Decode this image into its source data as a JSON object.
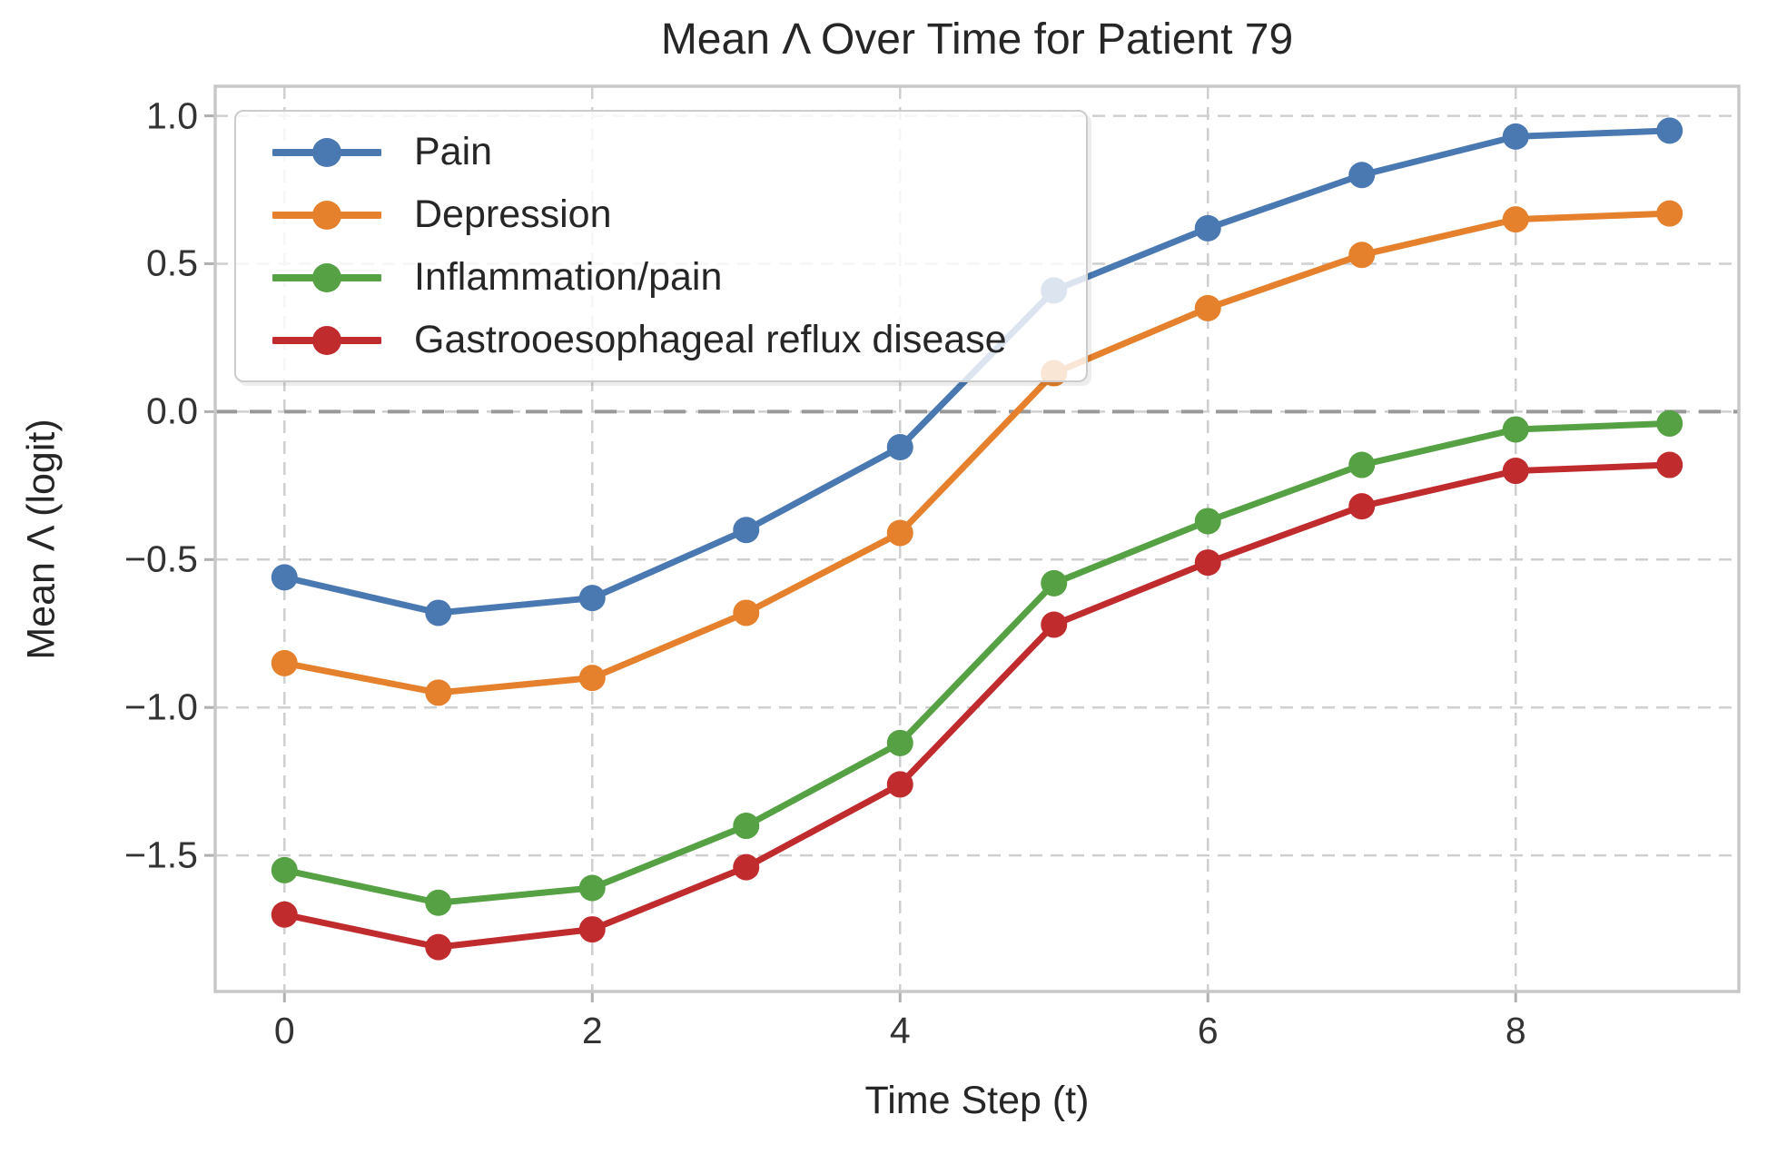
{
  "chart_data": {
    "type": "line",
    "title": "Mean Λ Over Time for Patient 79",
    "xlabel": "Time Step (t)",
    "ylabel": "Mean Λ (logit)",
    "x": [
      0,
      1,
      2,
      3,
      4,
      5,
      6,
      7,
      8,
      9
    ],
    "series": [
      {
        "name": "Pain",
        "color": "#4A79B1",
        "values": [
          -0.56,
          -0.68,
          -0.63,
          -0.4,
          -0.12,
          0.41,
          0.62,
          0.8,
          0.93,
          0.95
        ]
      },
      {
        "name": "Depression",
        "color": "#E5812C",
        "values": [
          -0.85,
          -0.95,
          -0.9,
          -0.68,
          -0.41,
          0.13,
          0.35,
          0.53,
          0.65,
          0.67
        ]
      },
      {
        "name": "Inflammation/pain",
        "color": "#55A143",
        "values": [
          -1.55,
          -1.66,
          -1.61,
          -1.4,
          -1.12,
          -0.58,
          -0.37,
          -0.18,
          -0.06,
          -0.04
        ]
      },
      {
        "name": "Gastrooesophageal reflux disease",
        "color": "#C02B2E",
        "values": [
          -1.7,
          -1.81,
          -1.75,
          -1.54,
          -1.26,
          -0.72,
          -0.51,
          -0.32,
          -0.2,
          -0.18
        ]
      }
    ],
    "x_ticks": [
      {
        "v": 0,
        "label": "0"
      },
      {
        "v": 2,
        "label": "2"
      },
      {
        "v": 4,
        "label": "4"
      },
      {
        "v": 6,
        "label": "6"
      },
      {
        "v": 8,
        "label": "8"
      }
    ],
    "y_ticks": [
      {
        "v": 1.0,
        "label": "1.0"
      },
      {
        "v": 0.5,
        "label": "0.5"
      },
      {
        "v": 0.0,
        "label": "0.0"
      },
      {
        "v": -0.5,
        "label": "−0.5"
      },
      {
        "v": -1.0,
        "label": "−1.0"
      },
      {
        "v": -1.5,
        "label": "−1.5"
      }
    ],
    "xlim": [
      -0.45,
      9.45
    ],
    "ylim": [
      -1.96,
      1.1
    ],
    "zero_line_y": 0.0,
    "grid": true,
    "legend_position": "upper left"
  },
  "colors": {
    "background": "#ffffff",
    "text": "#262626",
    "tick_text": "#333333",
    "grid": "#cfcfcf",
    "zero_line": "#999999",
    "frame": "#c8c8c8",
    "tick_mark": "#b0b0b0",
    "legend_border": "#cccccc"
  }
}
